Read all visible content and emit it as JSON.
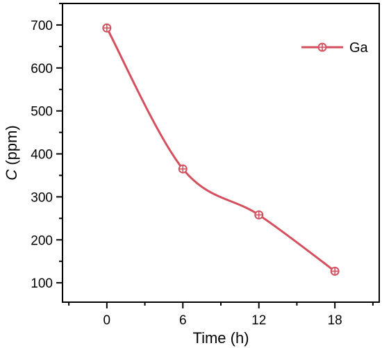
{
  "chart_data": {
    "type": "line",
    "x": [
      0,
      6,
      12,
      18
    ],
    "series": [
      {
        "name": "Ga",
        "values": [
          693,
          365,
          258,
          127
        ]
      }
    ],
    "xlabel": "Time (h)",
    "ylabel_italic": "C",
    "ylabel_rest": " (ppm)",
    "xlim": [
      -3.5,
      21.5
    ],
    "ylim": [
      55,
      750
    ],
    "x_ticks": [
      0,
      6,
      12,
      18
    ],
    "x_tick_labels": [
      "0",
      "6",
      "12",
      "18"
    ],
    "y_ticks": [
      100,
      200,
      300,
      400,
      500,
      600,
      700
    ],
    "y_tick_labels": [
      "100",
      "200",
      "300",
      "400",
      "500",
      "600",
      "700"
    ],
    "grid": false,
    "legend_position": "top-right",
    "line_color": "#d4505e",
    "smooth": true
  }
}
